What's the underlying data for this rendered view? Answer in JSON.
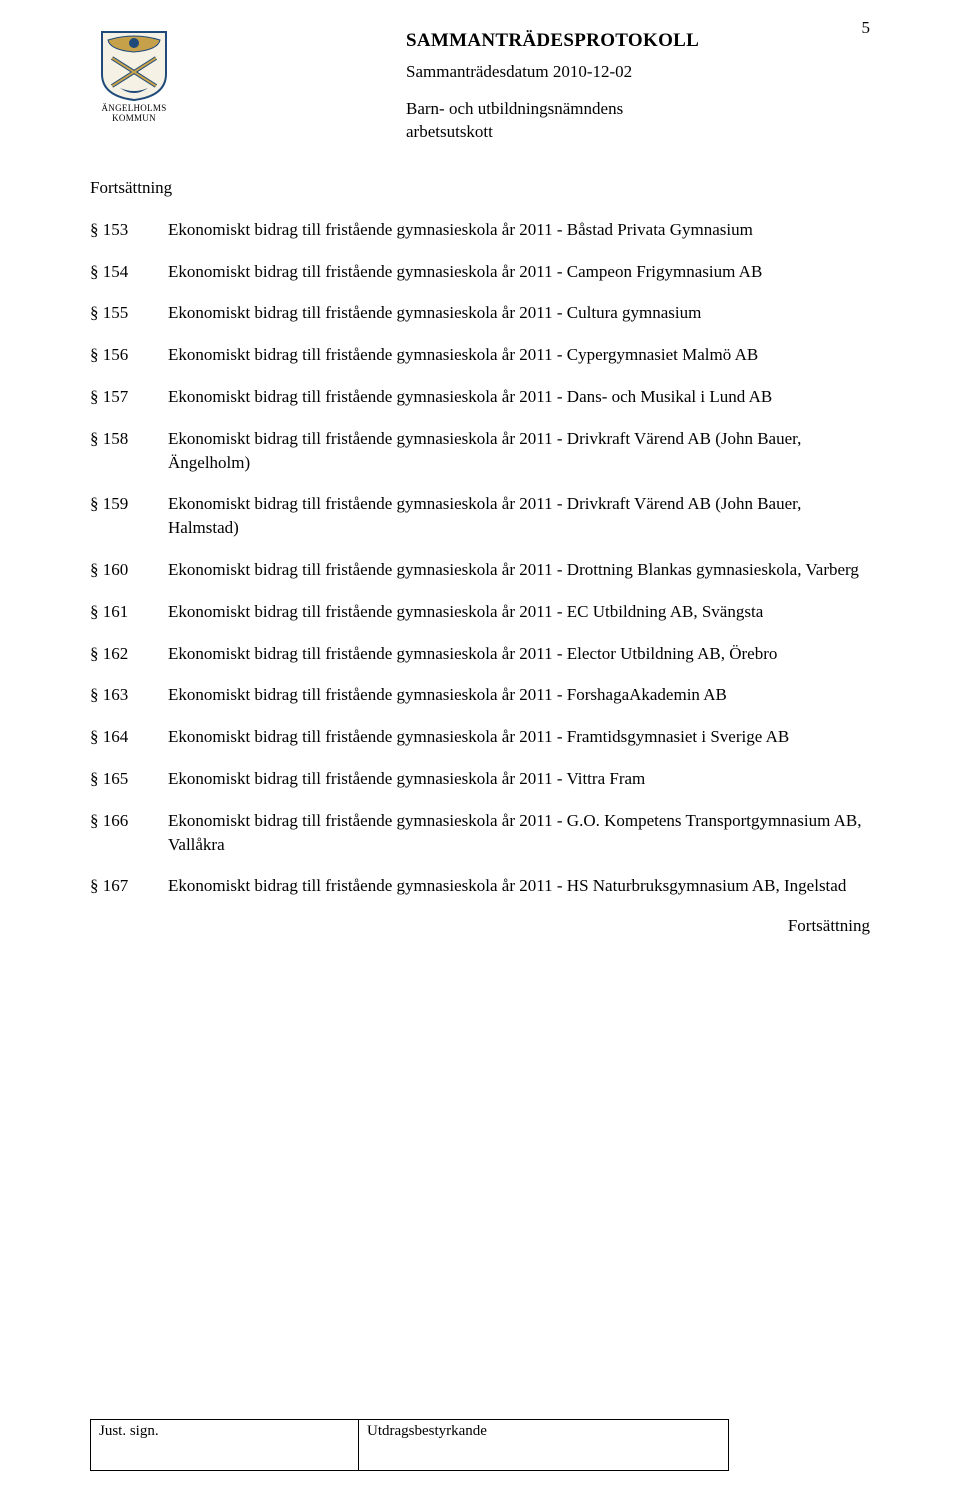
{
  "page_number": "5",
  "header": {
    "crest_top": "ÄNGELHOLMS",
    "crest_bottom": "KOMMUN",
    "doc_title": "SAMMANTRÄDESPROTOKOLL",
    "meeting_date": "Sammanträdesdatum 2010-12-02",
    "committee_line1": "Barn- och utbildningsnämndens",
    "committee_line2": "arbetsutskott"
  },
  "continuation_top": "Fortsättning",
  "continuation_bottom": "Fortsättning",
  "items": [
    {
      "section": "§ 153",
      "text": "Ekonomiskt bidrag till fristående gymnasieskola år 2011 - Båstad Privata Gymnasium"
    },
    {
      "section": "§ 154",
      "text": "Ekonomiskt bidrag till fristående gymnasieskola år 2011 - Campeon Frigymnasium AB"
    },
    {
      "section": "§ 155",
      "text": "Ekonomiskt bidrag till fristående gymnasieskola år 2011 - Cultura gymnasium"
    },
    {
      "section": "§ 156",
      "text": "Ekonomiskt bidrag till fristående gymnasieskola år 2011 - Cypergymnasiet Malmö AB"
    },
    {
      "section": "§ 157",
      "text": "Ekonomiskt bidrag till fristående gymnasieskola år 2011 - Dans- och Musikal i Lund AB"
    },
    {
      "section": "§ 158",
      "text": "Ekonomiskt bidrag till fristående gymnasieskola år 2011 - Drivkraft Värend AB (John Bauer, Ängelholm)"
    },
    {
      "section": "§ 159",
      "text": "Ekonomiskt bidrag till fristående gymnasieskola år 2011 - Drivkraft Värend AB (John Bauer, Halmstad)"
    },
    {
      "section": "§ 160",
      "text": "Ekonomiskt bidrag till fristående gymnasieskola år 2011 - Drottning Blankas gymnasieskola, Varberg"
    },
    {
      "section": "§ 161",
      "text": "Ekonomiskt bidrag till fristående gymnasieskola år 2011 - EC Utbildning AB, Svängsta"
    },
    {
      "section": "§ 162",
      "text": "Ekonomiskt bidrag till fristående gymnasieskola år 2011 - Elector Utbildning AB, Örebro"
    },
    {
      "section": "§ 163",
      "text": "Ekonomiskt bidrag till fristående gymnasieskola år 2011 - ForshagaAkademin AB"
    },
    {
      "section": "§ 164",
      "text": "Ekonomiskt bidrag till fristående gymnasieskola år 2011 - Framtidsgymnasiet i Sverige AB"
    },
    {
      "section": "§ 165",
      "text": "Ekonomiskt bidrag till fristående gymnasieskola år 2011 - Vittra Fram"
    },
    {
      "section": "§ 166",
      "text": "Ekonomiskt bidrag till fristående gymnasieskola år 2011 - G.O. Kompetens Transportgymnasium AB, Vallåkra"
    },
    {
      "section": "§ 167",
      "text": "Ekonomiskt bidrag till fristående gymnasieskola år 2011 - HS Naturbruksgymnasium AB, Ingelstad"
    }
  ],
  "footer": {
    "left": "Just. sign.",
    "right": "Utdragsbestyrkande"
  },
  "colors": {
    "text": "#000000",
    "background": "#ffffff",
    "crest_blue": "#1f4a7a",
    "crest_gold": "#c6a14a",
    "crest_white": "#f5f1e4"
  }
}
